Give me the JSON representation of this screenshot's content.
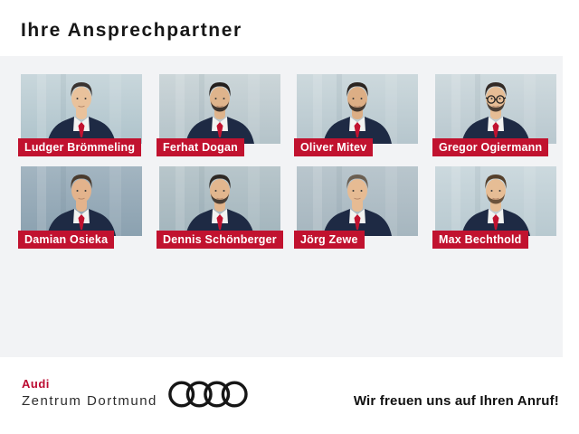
{
  "title": "Ihre Ansprechpartner",
  "people": [
    {
      "name": "Ludger Brömmeling",
      "portrait": "man-dark-hair-suit-red-tie",
      "hair": "#3a3330",
      "skin": "#e9c29c",
      "beard": false,
      "glasses": false,
      "backdrop": [
        "#c9d7dc",
        "#aec3cb"
      ]
    },
    {
      "name": "Ferhat Dogan",
      "portrait": "man-black-hair-beard-suit-red-tie",
      "hair": "#241f1d",
      "skin": "#dfb48c",
      "beard": true,
      "glasses": false,
      "backdrop": [
        "#ccd6d9",
        "#b4c3c9"
      ]
    },
    {
      "name": "Oliver Mitev",
      "portrait": "man-dark-hair-beard-suit-red-tie",
      "hair": "#2b2420",
      "skin": "#dcae85",
      "beard": true,
      "glasses": false,
      "backdrop": [
        "#cdd9dd",
        "#b6c6cd"
      ]
    },
    {
      "name": "Gregor Ogiermann",
      "portrait": "man-glasses-beard-suit-red-tie",
      "hair": "#332a25",
      "skin": "#e6bd95",
      "beard": true,
      "glasses": true,
      "backdrop": [
        "#cfdade",
        "#b9c8cf"
      ]
    },
    {
      "name": "Damian Osieka",
      "portrait": "man-brown-hair-suit-red-tie",
      "hair": "#4a3b2e",
      "skin": "#e3b38c",
      "beard": false,
      "glasses": false,
      "backdrop": [
        "#a3b5c1",
        "#8ba1b0"
      ]
    },
    {
      "name": "Dennis Schönberger",
      "portrait": "man-short-hair-beard-suit-red-tie",
      "hair": "#2e2824",
      "skin": "#e2b68e",
      "beard": true,
      "glasses": false,
      "backdrop": [
        "#b8c6cb",
        "#a3b5bd"
      ]
    },
    {
      "name": "Jörg Zewe",
      "portrait": "man-gray-hair-suit-red-tie",
      "hair": "#6b5f52",
      "skin": "#e6bb93",
      "beard": false,
      "glasses": false,
      "backdrop": [
        "#b9c6cd",
        "#a6b6bf"
      ]
    },
    {
      "name": "Max Bechthold",
      "portrait": "man-styled-hair-goatee-suit-red-tie",
      "hair": "#55402c",
      "skin": "#e6bd95",
      "beard": true,
      "glasses": false,
      "backdrop": [
        "#ccd9de",
        "#b8c9d0"
      ]
    }
  ],
  "footer": {
    "brand": "Audi",
    "dealer": "Zentrum Dortmund",
    "logo": "audi-rings-icon",
    "slogan": "Wir freuen uns auf Ihren Anruf!"
  },
  "colors": {
    "accent_red": "#c1122f",
    "brand_red": "#bb0a30",
    "panel_gray": "#f2f3f5",
    "text_dark": "#161616",
    "suit_navy": "#1e2a44",
    "shirt_white": "#f2f3f1",
    "rings_black": "#161616"
  }
}
